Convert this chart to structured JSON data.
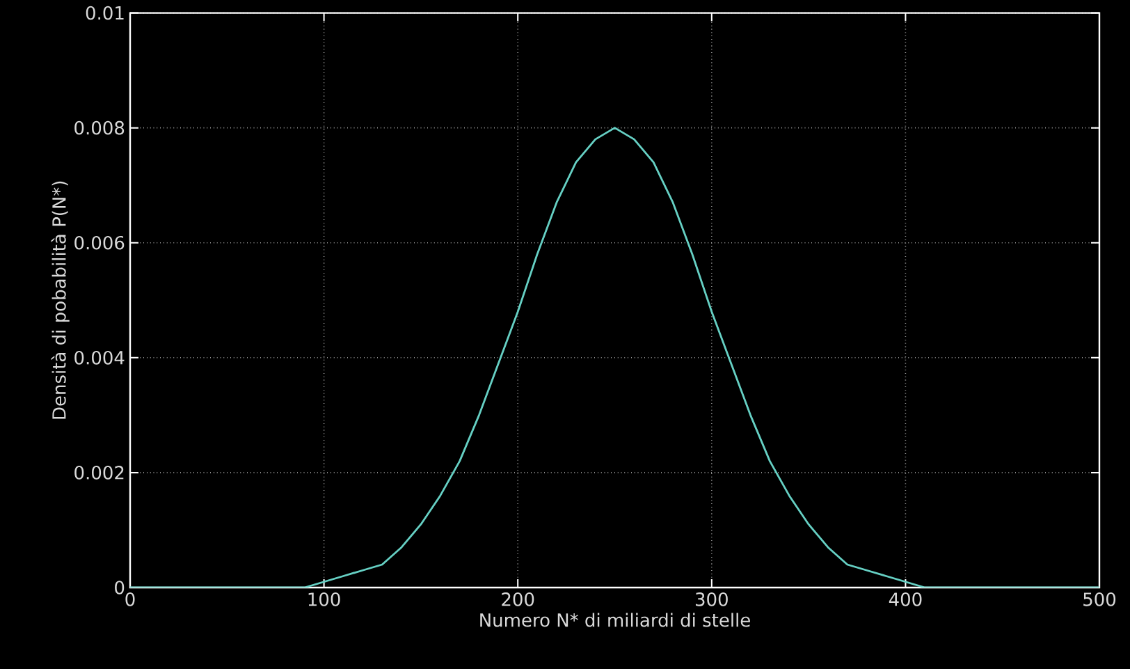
{
  "chart_data": {
    "type": "line",
    "xlabel": "Numero N* di miliardi di stelle",
    "ylabel": "Densità di pobabilità P(N*)",
    "x": [
      0,
      10,
      20,
      30,
      40,
      50,
      60,
      70,
      80,
      90,
      100,
      110,
      120,
      130,
      140,
      150,
      160,
      170,
      180,
      190,
      200,
      210,
      220,
      230,
      240,
      250,
      260,
      270,
      280,
      290,
      300,
      310,
      320,
      330,
      340,
      350,
      360,
      370,
      380,
      390,
      400,
      410,
      420,
      430,
      440,
      450,
      460,
      470,
      480,
      490,
      500
    ],
    "series": [
      {
        "color": "#66d0c4",
        "values": [
          0,
          0,
          0,
          0,
          0,
          0,
          0,
          0,
          0,
          0,
          0.0001,
          0.0002,
          0.0003,
          0.0004,
          0.0007,
          0.0011,
          0.0016,
          0.0022,
          0.003,
          0.0039,
          0.0048,
          0.0058,
          0.0067,
          0.0074,
          0.0078,
          0.008,
          0.0078,
          0.0074,
          0.0067,
          0.0058,
          0.0048,
          0.0039,
          0.003,
          0.0022,
          0.0016,
          0.0011,
          0.0007,
          0.0004,
          0.0003,
          0.0002,
          0.0001,
          0,
          0,
          0,
          0,
          0,
          0,
          0,
          0,
          0,
          0
        ]
      }
    ],
    "xlim": [
      0,
      500
    ],
    "ylim": [
      0,
      0.01
    ],
    "xticks": [
      0,
      100,
      200,
      300,
      400,
      500
    ],
    "yticks": [
      0,
      0.002,
      0.004,
      0.006,
      0.008,
      0.01
    ],
    "grid": true,
    "line_style": "solid",
    "marker": "none"
  }
}
